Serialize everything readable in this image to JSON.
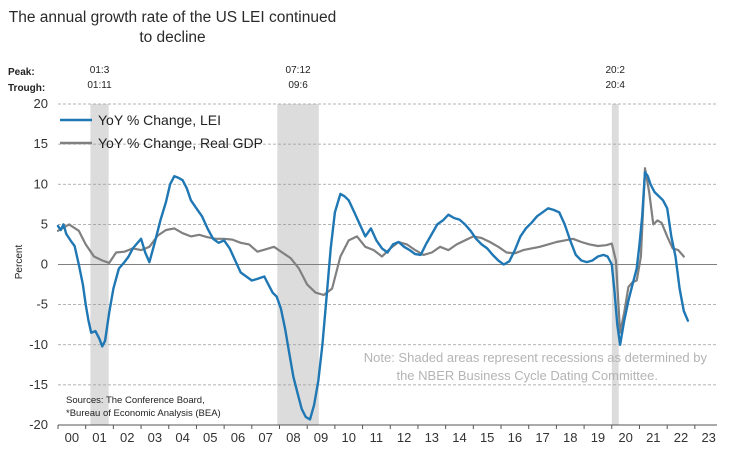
{
  "chart_data": {
    "type": "line",
    "title_lines": [
      "The annual growth rate of the US LEI continued",
      "to decline"
    ],
    "ylabel": "Percent",
    "ylim": [
      -20,
      20
    ],
    "yticks": [
      20,
      15,
      10,
      5,
      0,
      -5,
      -10,
      -15,
      -20
    ],
    "xlim": [
      2000,
      2023.8
    ],
    "xtick_labels": [
      "00",
      "01",
      "02",
      "03",
      "04",
      "05",
      "06",
      "07",
      "08",
      "09",
      "10",
      "11",
      "12",
      "13",
      "14",
      "15",
      "16",
      "17",
      "18",
      "19",
      "20",
      "21",
      "22",
      "23"
    ],
    "peak_label": "Peak:",
    "trough_label": "Trough:",
    "recessions": [
      {
        "start": 2001.17,
        "end": 2001.83,
        "peak": "01:3",
        "trough": "01:11"
      },
      {
        "start": 2007.92,
        "end": 2009.42,
        "peak": "07:12",
        "trough": "09:6"
      },
      {
        "start": 2020.0,
        "end": 2020.25,
        "peak": "20:2",
        "trough": "20:4"
      }
    ],
    "legend": [
      "YoY % Change, LEI",
      "YoY % Change, Real GDP"
    ],
    "colors": {
      "lei": "#1f77b4",
      "gdp": "#808080",
      "recession": "#dcdcdc",
      "zero_line": "#7f7f7f",
      "grid": "#9a9a9a"
    },
    "series": [
      {
        "name": "YoY % Change, LEI",
        "x": [
          2000.0,
          2000.1,
          2000.2,
          2000.3,
          2000.45,
          2000.6,
          2000.75,
          2000.9,
          2001.0,
          2001.1,
          2001.2,
          2001.35,
          2001.5,
          2001.6,
          2001.7,
          2001.85,
          2002.0,
          2002.2,
          2002.4,
          2002.55,
          2002.7,
          2002.85,
          2003.0,
          2003.15,
          2003.3,
          2003.5,
          2003.7,
          2003.9,
          2004.05,
          2004.2,
          2004.35,
          2004.5,
          2004.65,
          2004.8,
          2005.0,
          2005.2,
          2005.4,
          2005.6,
          2005.8,
          2006.0,
          2006.2,
          2006.4,
          2006.6,
          2006.8,
          2007.0,
          2007.2,
          2007.45,
          2007.6,
          2007.75,
          2007.9,
          2008.05,
          2008.2,
          2008.35,
          2008.5,
          2008.65,
          2008.8,
          2008.95,
          2009.1,
          2009.25,
          2009.4,
          2009.55,
          2009.7,
          2009.85,
          2010.0,
          2010.2,
          2010.35,
          2010.5,
          2010.7,
          2010.9,
          2011.1,
          2011.3,
          2011.5,
          2011.7,
          2011.9,
          2012.1,
          2012.3,
          2012.5,
          2012.7,
          2012.9,
          2013.1,
          2013.3,
          2013.5,
          2013.7,
          2013.9,
          2014.1,
          2014.3,
          2014.5,
          2014.7,
          2014.9,
          2015.1,
          2015.3,
          2015.5,
          2015.7,
          2015.9,
          2016.1,
          2016.3,
          2016.5,
          2016.7,
          2016.9,
          2017.1,
          2017.3,
          2017.5,
          2017.7,
          2017.9,
          2018.1,
          2018.3,
          2018.5,
          2018.7,
          2018.9,
          2019.1,
          2019.3,
          2019.5,
          2019.7,
          2019.85,
          2020.0,
          2020.1,
          2020.2,
          2020.3,
          2020.45,
          2020.6,
          2020.75,
          2020.9,
          2021.0,
          2021.1,
          2021.2,
          2021.3,
          2021.4,
          2021.55,
          2021.7,
          2021.85,
          2022.0,
          2022.15,
          2022.3,
          2022.45,
          2022.6,
          2022.75
        ],
        "values": [
          4.8,
          4.3,
          5.0,
          3.8,
          3.0,
          2.3,
          0.0,
          -2.5,
          -5.0,
          -7.0,
          -8.5,
          -8.3,
          -9.3,
          -10.2,
          -9.5,
          -6.0,
          -3.0,
          -0.5,
          0.3,
          1.0,
          2.0,
          2.6,
          3.2,
          1.5,
          0.3,
          2.8,
          5.5,
          7.8,
          10.0,
          11.0,
          10.8,
          10.5,
          9.5,
          8.0,
          7.0,
          6.0,
          4.5,
          3.2,
          2.7,
          3.0,
          2.0,
          0.5,
          -1.0,
          -1.5,
          -2.0,
          -1.8,
          -1.5,
          -2.5,
          -3.5,
          -4.0,
          -5.5,
          -8.0,
          -11.0,
          -14.0,
          -16.0,
          -18.0,
          -19.0,
          -19.3,
          -17.5,
          -14.5,
          -10.0,
          -4.0,
          2.0,
          6.5,
          8.8,
          8.5,
          8.0,
          6.5,
          5.0,
          3.5,
          4.5,
          3.0,
          2.0,
          1.5,
          2.5,
          2.8,
          2.2,
          1.8,
          1.3,
          1.2,
          2.6,
          3.8,
          5.0,
          5.5,
          6.2,
          5.8,
          5.6,
          5.0,
          4.2,
          3.2,
          2.5,
          2.0,
          1.2,
          0.5,
          0.0,
          0.4,
          1.8,
          3.5,
          4.5,
          5.2,
          6.0,
          6.5,
          7.0,
          6.8,
          6.5,
          5.0,
          3.0,
          1.2,
          0.5,
          0.3,
          0.5,
          1.0,
          1.2,
          1.0,
          0.0,
          -3.5,
          -7.5,
          -10.0,
          -7.0,
          -4.5,
          -2.5,
          -0.5,
          2.5,
          6.0,
          11.5,
          11.0,
          10.0,
          9.0,
          8.5,
          8.0,
          7.0,
          3.5,
          1.0,
          -3.0,
          -5.8,
          -7.0
        ]
      },
      {
        "name": "YoY % Change, Real GDP",
        "x": [
          2000.0,
          2000.4,
          2000.75,
          2001.0,
          2001.3,
          2001.6,
          2001.85,
          2002.1,
          2002.4,
          2002.7,
          2003.0,
          2003.3,
          2003.6,
          2003.9,
          2004.2,
          2004.5,
          2004.8,
          2005.1,
          2005.4,
          2005.7,
          2006.0,
          2006.3,
          2006.6,
          2006.9,
          2007.2,
          2007.5,
          2007.8,
          2008.1,
          2008.4,
          2008.7,
          2009.0,
          2009.3,
          2009.6,
          2009.9,
          2010.2,
          2010.5,
          2010.8,
          2011.1,
          2011.4,
          2011.7,
          2012.0,
          2012.3,
          2012.6,
          2012.9,
          2013.2,
          2013.5,
          2013.8,
          2014.1,
          2014.4,
          2014.7,
          2015.0,
          2015.3,
          2015.6,
          2015.9,
          2016.2,
          2016.5,
          2016.8,
          2017.1,
          2017.4,
          2017.7,
          2018.0,
          2018.3,
          2018.6,
          2018.9,
          2019.2,
          2019.5,
          2019.8,
          2020.0,
          2020.15,
          2020.3,
          2020.45,
          2020.6,
          2020.75,
          2020.9,
          2021.05,
          2021.2,
          2021.35,
          2021.5,
          2021.65,
          2021.8,
          2022.0,
          2022.2,
          2022.4,
          2022.6
        ],
        "values": [
          4.2,
          5.0,
          4.2,
          2.5,
          1.0,
          0.5,
          0.2,
          1.5,
          1.6,
          2.0,
          1.8,
          2.2,
          3.6,
          4.3,
          4.5,
          3.9,
          3.5,
          3.7,
          3.4,
          3.2,
          3.2,
          3.1,
          2.7,
          2.5,
          1.6,
          1.9,
          2.2,
          1.5,
          0.8,
          -0.5,
          -2.5,
          -3.5,
          -3.8,
          -3.0,
          1.0,
          3.0,
          3.5,
          2.2,
          1.8,
          1.0,
          2.0,
          2.8,
          2.5,
          1.8,
          1.2,
          1.5,
          2.2,
          1.8,
          2.5,
          3.0,
          3.5,
          3.3,
          2.8,
          2.2,
          1.5,
          1.4,
          1.8,
          2.0,
          2.2,
          2.5,
          2.8,
          3.0,
          3.2,
          2.8,
          2.5,
          2.3,
          2.4,
          2.6,
          0.5,
          -8.5,
          -6.0,
          -2.8,
          -2.2,
          -2.0,
          1.0,
          12.0,
          9.0,
          5.0,
          5.5,
          5.2,
          3.5,
          2.0,
          1.8,
          1.0
        ]
      }
    ],
    "note": [
      "Note: Shaded areas represent recessions as determined by",
      "the NBER Business Cycle Dating Committee."
    ],
    "sources": [
      "Sources: The Conference Board,",
      "*Bureau of Economic Analysis (BEA)"
    ]
  }
}
